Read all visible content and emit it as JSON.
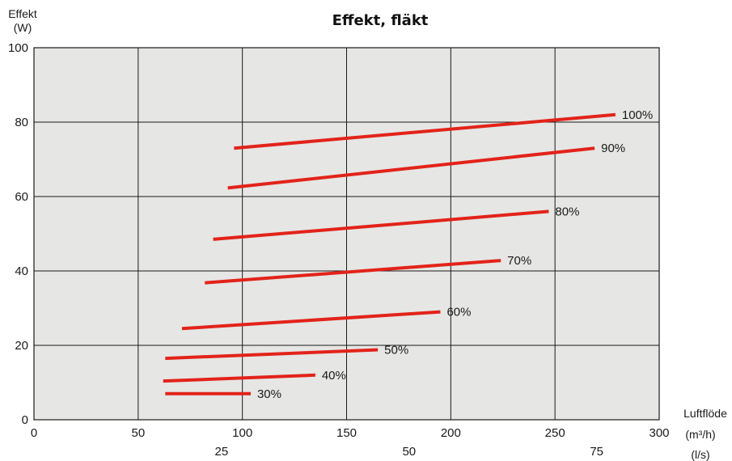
{
  "chart_data": {
    "type": "line",
    "title": "Effekt, fläkt",
    "ylabel_line1": "Effekt",
    "ylabel_line2": "(W)",
    "xlabel": "Luftflöde",
    "xunit_primary": "(m³/h)",
    "xunit_secondary": "(l/s)",
    "xlim": [
      0,
      300
    ],
    "ylim": [
      0,
      100
    ],
    "xticks": [
      0,
      50,
      100,
      150,
      200,
      250,
      300
    ],
    "yticks": [
      0,
      20,
      40,
      60,
      80,
      100
    ],
    "secondary_xticks": [
      25,
      50,
      75
    ],
    "grid": true,
    "series": [
      {
        "name": "100%",
        "x": [
          96,
          279
        ],
        "y": [
          73,
          82
        ]
      },
      {
        "name": "90%",
        "x": [
          93,
          269
        ],
        "y": [
          62.3,
          73
        ]
      },
      {
        "name": "80%",
        "x": [
          86,
          247
        ],
        "y": [
          48.5,
          56
        ]
      },
      {
        "name": "70%",
        "x": [
          82,
          224
        ],
        "y": [
          36.8,
          42.8
        ]
      },
      {
        "name": "60%",
        "x": [
          71,
          195
        ],
        "y": [
          24.5,
          29
        ]
      },
      {
        "name": "50%",
        "x": [
          63,
          165
        ],
        "y": [
          16.5,
          18.8
        ]
      },
      {
        "name": "40%",
        "x": [
          62,
          135
        ],
        "y": [
          10.4,
          12
        ]
      },
      {
        "name": "30%",
        "x": [
          63,
          104
        ],
        "y": [
          7,
          7
        ]
      }
    ]
  },
  "colors": {
    "plot_bg": "#e6e6e4",
    "grid": "#1a1a1a",
    "series": "#e2231a"
  }
}
